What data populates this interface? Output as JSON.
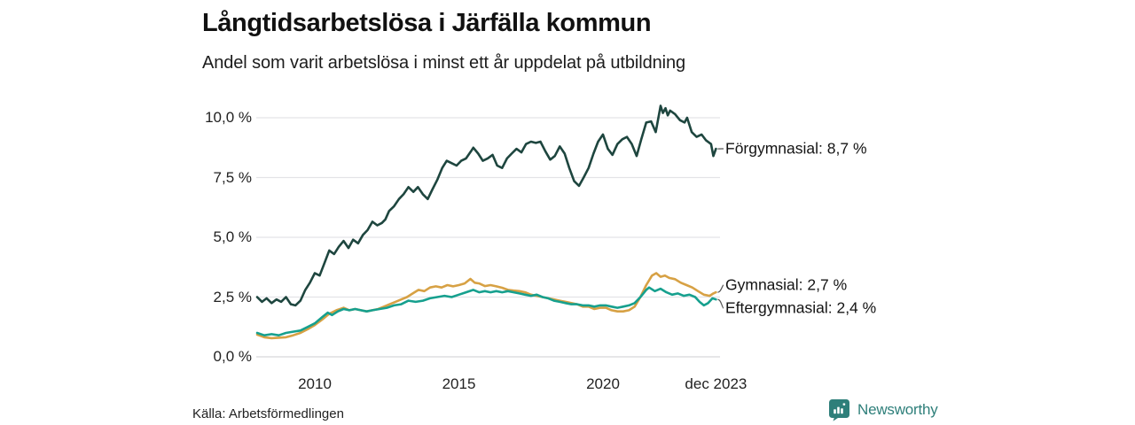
{
  "header": {
    "title": "Långtidsarbetslösa i Järfälla kommun",
    "subtitle": "Andel som varit arbetslösa i minst ett år uppdelat på utbildning"
  },
  "footer": {
    "source": "Källa: Arbetsförmedlingen",
    "brand": "Newsworthy",
    "brand_color": "#2e7f7a"
  },
  "colors": {
    "forgymnasial": "#1e463f",
    "gymnasial": "#d7a144",
    "eftergymnasial": "#16a08e",
    "gridline": "#e3e3e7",
    "axis_line": "#d6d6db",
    "connector": "#555555"
  },
  "chart_data": {
    "type": "line",
    "title": "Långtidsarbetslösa i Järfälla kommun",
    "subtitle": "Andel som varit arbetslösa i minst ett år uppdelat på utbildning",
    "unit": "%",
    "grid": true,
    "legend_position": "end-of-line-labels-right",
    "x_axis": {
      "range": [
        2008.0,
        2023.92
      ],
      "ticks": [
        {
          "label": "2010",
          "year": 2010
        },
        {
          "label": "2015",
          "year": 2015
        },
        {
          "label": "2020",
          "year": 2020
        },
        {
          "label": "dec 2023",
          "year": 2023.92
        }
      ]
    },
    "y_axis": {
      "range": [
        0,
        10.5
      ],
      "ticks": [
        {
          "label": "0,0 %",
          "value": 0
        },
        {
          "label": "2,5 %",
          "value": 2.5
        },
        {
          "label": "5,0 %",
          "value": 5
        },
        {
          "label": "7,5 %",
          "value": 7.5
        },
        {
          "label": "10,0 %",
          "value": 10
        }
      ]
    },
    "series": [
      {
        "name": "Förgymnasial",
        "end_label": "Förgymnasial: 8,7 %",
        "end_value": 8.7,
        "color_key": "forgymnasial",
        "points": [
          [
            2008.0,
            2.5
          ],
          [
            2008.17,
            2.3
          ],
          [
            2008.33,
            2.45
          ],
          [
            2008.5,
            2.25
          ],
          [
            2008.67,
            2.4
          ],
          [
            2008.83,
            2.3
          ],
          [
            2009.0,
            2.5
          ],
          [
            2009.17,
            2.2
          ],
          [
            2009.33,
            2.15
          ],
          [
            2009.5,
            2.35
          ],
          [
            2009.67,
            2.8
          ],
          [
            2009.83,
            3.1
          ],
          [
            2010.0,
            3.5
          ],
          [
            2010.17,
            3.4
          ],
          [
            2010.33,
            3.9
          ],
          [
            2010.5,
            4.45
          ],
          [
            2010.67,
            4.3
          ],
          [
            2010.83,
            4.6
          ],
          [
            2011.0,
            4.85
          ],
          [
            2011.17,
            4.55
          ],
          [
            2011.33,
            4.9
          ],
          [
            2011.5,
            4.75
          ],
          [
            2011.67,
            5.1
          ],
          [
            2011.83,
            5.3
          ],
          [
            2012.0,
            5.65
          ],
          [
            2012.17,
            5.5
          ],
          [
            2012.33,
            5.6
          ],
          [
            2012.45,
            5.75
          ],
          [
            2012.58,
            6.1
          ],
          [
            2012.75,
            6.3
          ],
          [
            2012.92,
            6.6
          ],
          [
            2013.08,
            6.8
          ],
          [
            2013.25,
            7.1
          ],
          [
            2013.42,
            6.9
          ],
          [
            2013.58,
            7.1
          ],
          [
            2013.75,
            6.8
          ],
          [
            2013.92,
            6.6
          ],
          [
            2014.08,
            7.0
          ],
          [
            2014.25,
            7.4
          ],
          [
            2014.42,
            7.9
          ],
          [
            2014.58,
            8.2
          ],
          [
            2014.75,
            8.1
          ],
          [
            2014.92,
            8.0
          ],
          [
            2015.08,
            8.2
          ],
          [
            2015.25,
            8.3
          ],
          [
            2015.42,
            8.6
          ],
          [
            2015.5,
            8.75
          ],
          [
            2015.67,
            8.5
          ],
          [
            2015.83,
            8.2
          ],
          [
            2016.0,
            8.3
          ],
          [
            2016.17,
            8.45
          ],
          [
            2016.33,
            8.0
          ],
          [
            2016.5,
            7.9
          ],
          [
            2016.67,
            8.3
          ],
          [
            2016.83,
            8.5
          ],
          [
            2017.0,
            8.7
          ],
          [
            2017.17,
            8.55
          ],
          [
            2017.33,
            8.9
          ],
          [
            2017.5,
            9.0
          ],
          [
            2017.67,
            8.95
          ],
          [
            2017.83,
            9.0
          ],
          [
            2018.0,
            8.6
          ],
          [
            2018.17,
            8.25
          ],
          [
            2018.33,
            8.4
          ],
          [
            2018.5,
            8.8
          ],
          [
            2018.67,
            8.5
          ],
          [
            2018.83,
            7.9
          ],
          [
            2019.0,
            7.35
          ],
          [
            2019.17,
            7.15
          ],
          [
            2019.33,
            7.5
          ],
          [
            2019.5,
            7.9
          ],
          [
            2019.67,
            8.5
          ],
          [
            2019.83,
            9.0
          ],
          [
            2020.0,
            9.3
          ],
          [
            2020.17,
            8.7
          ],
          [
            2020.33,
            8.45
          ],
          [
            2020.5,
            8.9
          ],
          [
            2020.67,
            9.1
          ],
          [
            2020.83,
            9.2
          ],
          [
            2021.0,
            8.9
          ],
          [
            2021.17,
            8.4
          ],
          [
            2021.33,
            9.1
          ],
          [
            2021.5,
            9.8
          ],
          [
            2021.67,
            9.85
          ],
          [
            2021.83,
            9.4
          ],
          [
            2022.0,
            10.5
          ],
          [
            2022.08,
            10.2
          ],
          [
            2022.17,
            10.4
          ],
          [
            2022.25,
            10.1
          ],
          [
            2022.33,
            10.3
          ],
          [
            2022.5,
            10.15
          ],
          [
            2022.67,
            9.9
          ],
          [
            2022.83,
            9.8
          ],
          [
            2022.92,
            10.0
          ],
          [
            2023.08,
            9.4
          ],
          [
            2023.25,
            9.2
          ],
          [
            2023.42,
            9.3
          ],
          [
            2023.58,
            9.05
          ],
          [
            2023.75,
            8.9
          ],
          [
            2023.83,
            8.4
          ],
          [
            2023.92,
            8.7
          ]
        ]
      },
      {
        "name": "Gymnasial",
        "end_label": "Gymnasial: 2,7 %",
        "end_value": 2.7,
        "color_key": "gymnasial",
        "points": [
          [
            2008.0,
            0.93
          ],
          [
            2008.25,
            0.82
          ],
          [
            2008.5,
            0.78
          ],
          [
            2008.75,
            0.8
          ],
          [
            2009.0,
            0.82
          ],
          [
            2009.25,
            0.9
          ],
          [
            2009.5,
            1.0
          ],
          [
            2009.75,
            1.15
          ],
          [
            2010.0,
            1.33
          ],
          [
            2010.25,
            1.55
          ],
          [
            2010.5,
            1.8
          ],
          [
            2010.75,
            1.95
          ],
          [
            2011.0,
            2.05
          ],
          [
            2011.2,
            1.95
          ],
          [
            2011.4,
            2.0
          ],
          [
            2011.6,
            1.95
          ],
          [
            2011.8,
            1.9
          ],
          [
            2012.0,
            1.95
          ],
          [
            2012.2,
            2.0
          ],
          [
            2012.4,
            2.1
          ],
          [
            2012.6,
            2.2
          ],
          [
            2012.8,
            2.3
          ],
          [
            2013.0,
            2.4
          ],
          [
            2013.2,
            2.5
          ],
          [
            2013.4,
            2.65
          ],
          [
            2013.6,
            2.8
          ],
          [
            2013.8,
            2.75
          ],
          [
            2014.0,
            2.9
          ],
          [
            2014.2,
            2.95
          ],
          [
            2014.4,
            2.9
          ],
          [
            2014.6,
            3.0
          ],
          [
            2014.8,
            2.95
          ],
          [
            2015.0,
            3.0
          ],
          [
            2015.2,
            3.07
          ],
          [
            2015.4,
            3.26
          ],
          [
            2015.55,
            3.1
          ],
          [
            2015.7,
            3.07
          ],
          [
            2015.9,
            2.96
          ],
          [
            2016.1,
            3.0
          ],
          [
            2016.3,
            2.95
          ],
          [
            2016.5,
            2.89
          ],
          [
            2016.7,
            2.8
          ],
          [
            2016.9,
            2.77
          ],
          [
            2017.1,
            2.75
          ],
          [
            2017.3,
            2.7
          ],
          [
            2017.5,
            2.6
          ],
          [
            2017.7,
            2.55
          ],
          [
            2017.9,
            2.5
          ],
          [
            2018.1,
            2.45
          ],
          [
            2018.3,
            2.4
          ],
          [
            2018.5,
            2.35
          ],
          [
            2018.7,
            2.3
          ],
          [
            2018.9,
            2.25
          ],
          [
            2019.1,
            2.2
          ],
          [
            2019.3,
            2.1
          ],
          [
            2019.5,
            2.1
          ],
          [
            2019.7,
            2.0
          ],
          [
            2019.9,
            2.05
          ],
          [
            2020.1,
            2.05
          ],
          [
            2020.3,
            1.95
          ],
          [
            2020.5,
            1.9
          ],
          [
            2020.7,
            1.9
          ],
          [
            2020.9,
            1.95
          ],
          [
            2021.1,
            2.1
          ],
          [
            2021.3,
            2.5
          ],
          [
            2021.5,
            3.0
          ],
          [
            2021.7,
            3.4
          ],
          [
            2021.85,
            3.5
          ],
          [
            2022.0,
            3.35
          ],
          [
            2022.15,
            3.4
          ],
          [
            2022.3,
            3.3
          ],
          [
            2022.5,
            3.25
          ],
          [
            2022.7,
            3.1
          ],
          [
            2022.9,
            3.0
          ],
          [
            2023.1,
            2.9
          ],
          [
            2023.3,
            2.75
          ],
          [
            2023.5,
            2.6
          ],
          [
            2023.7,
            2.55
          ],
          [
            2023.83,
            2.65
          ],
          [
            2023.92,
            2.7
          ]
        ]
      },
      {
        "name": "Eftergymnasial",
        "end_label": "Eftergymnasial: 2,4 %",
        "end_value": 2.4,
        "color_key": "eftergymnasial",
        "points": [
          [
            2008.0,
            1.0
          ],
          [
            2008.25,
            0.9
          ],
          [
            2008.5,
            0.95
          ],
          [
            2008.75,
            0.9
          ],
          [
            2009.0,
            1.0
          ],
          [
            2009.25,
            1.05
          ],
          [
            2009.5,
            1.1
          ],
          [
            2009.75,
            1.25
          ],
          [
            2010.0,
            1.4
          ],
          [
            2010.25,
            1.65
          ],
          [
            2010.45,
            1.85
          ],
          [
            2010.6,
            1.75
          ],
          [
            2010.8,
            1.9
          ],
          [
            2011.0,
            2.0
          ],
          [
            2011.2,
            1.95
          ],
          [
            2011.4,
            2.0
          ],
          [
            2011.6,
            1.95
          ],
          [
            2011.8,
            1.9
          ],
          [
            2012.0,
            1.95
          ],
          [
            2012.25,
            2.0
          ],
          [
            2012.5,
            2.05
          ],
          [
            2012.75,
            2.15
          ],
          [
            2013.0,
            2.2
          ],
          [
            2013.25,
            2.35
          ],
          [
            2013.5,
            2.3
          ],
          [
            2013.75,
            2.35
          ],
          [
            2014.0,
            2.45
          ],
          [
            2014.25,
            2.5
          ],
          [
            2014.5,
            2.55
          ],
          [
            2014.75,
            2.5
          ],
          [
            2015.0,
            2.6
          ],
          [
            2015.25,
            2.7
          ],
          [
            2015.5,
            2.8
          ],
          [
            2015.7,
            2.7
          ],
          [
            2015.9,
            2.75
          ],
          [
            2016.1,
            2.7
          ],
          [
            2016.3,
            2.75
          ],
          [
            2016.5,
            2.7
          ],
          [
            2016.7,
            2.75
          ],
          [
            2016.9,
            2.7
          ],
          [
            2017.1,
            2.65
          ],
          [
            2017.3,
            2.6
          ],
          [
            2017.5,
            2.55
          ],
          [
            2017.7,
            2.6
          ],
          [
            2017.9,
            2.5
          ],
          [
            2018.1,
            2.45
          ],
          [
            2018.3,
            2.35
          ],
          [
            2018.5,
            2.3
          ],
          [
            2018.7,
            2.25
          ],
          [
            2018.9,
            2.2
          ],
          [
            2019.1,
            2.2
          ],
          [
            2019.3,
            2.15
          ],
          [
            2019.5,
            2.15
          ],
          [
            2019.7,
            2.1
          ],
          [
            2019.9,
            2.15
          ],
          [
            2020.1,
            2.15
          ],
          [
            2020.3,
            2.1
          ],
          [
            2020.5,
            2.05
          ],
          [
            2020.7,
            2.1
          ],
          [
            2020.9,
            2.15
          ],
          [
            2021.1,
            2.25
          ],
          [
            2021.3,
            2.5
          ],
          [
            2021.5,
            2.8
          ],
          [
            2021.6,
            2.9
          ],
          [
            2021.8,
            2.75
          ],
          [
            2022.0,
            2.85
          ],
          [
            2022.2,
            2.7
          ],
          [
            2022.4,
            2.6
          ],
          [
            2022.6,
            2.65
          ],
          [
            2022.8,
            2.55
          ],
          [
            2023.0,
            2.6
          ],
          [
            2023.2,
            2.5
          ],
          [
            2023.35,
            2.3
          ],
          [
            2023.5,
            2.15
          ],
          [
            2023.65,
            2.25
          ],
          [
            2023.8,
            2.45
          ],
          [
            2023.92,
            2.4
          ]
        ]
      }
    ]
  }
}
